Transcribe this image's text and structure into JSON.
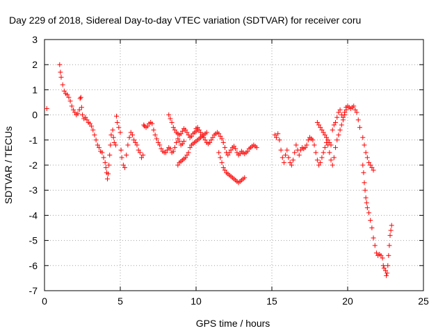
{
  "chart_data": {
    "type": "scatter",
    "title": "Day 229 of 2018, Sidereal Day-to-day VTEC variation (SDTVAR) for receiver coru",
    "xlabel": "GPS time / hours",
    "ylabel": "SDTVAR / TECUs",
    "xlim": [
      0,
      25
    ],
    "ylim": [
      -7,
      3
    ],
    "xticks": [
      0,
      5,
      10,
      15,
      20,
      25
    ],
    "yticks": [
      -7,
      -6,
      -5,
      -4,
      -3,
      -2,
      -1,
      0,
      1,
      2,
      3
    ],
    "grid": true,
    "marker": "+",
    "series": [
      {
        "name": "SDTVAR",
        "color": "#ff0000",
        "points": [
          [
            0.15,
            0.25
          ],
          [
            1.0,
            2.0
          ],
          [
            1.05,
            1.7
          ],
          [
            1.1,
            1.5
          ],
          [
            1.2,
            1.2
          ],
          [
            1.3,
            0.95
          ],
          [
            1.4,
            0.85
          ],
          [
            1.5,
            0.8
          ],
          [
            1.6,
            0.7
          ],
          [
            1.7,
            0.55
          ],
          [
            1.8,
            0.35
          ],
          [
            1.9,
            0.2
          ],
          [
            2.0,
            0.1
          ],
          [
            2.1,
            0.0
          ],
          [
            2.2,
            0.05
          ],
          [
            2.3,
            0.2
          ],
          [
            2.35,
            0.65
          ],
          [
            2.4,
            0.7
          ],
          [
            2.45,
            0.3
          ],
          [
            2.5,
            0.0
          ],
          [
            2.6,
            -0.15
          ],
          [
            2.7,
            -0.1
          ],
          [
            2.8,
            -0.2
          ],
          [
            2.9,
            -0.3
          ],
          [
            3.0,
            -0.35
          ],
          [
            3.1,
            -0.45
          ],
          [
            3.2,
            -0.6
          ],
          [
            3.3,
            -0.8
          ],
          [
            3.4,
            -1.0
          ],
          [
            3.5,
            -1.2
          ],
          [
            3.6,
            -1.3
          ],
          [
            3.7,
            -1.45
          ],
          [
            3.8,
            -1.5
          ],
          [
            3.9,
            -1.7
          ],
          [
            4.0,
            -1.9
          ],
          [
            4.05,
            -2.1
          ],
          [
            4.1,
            -2.3
          ],
          [
            4.15,
            -2.55
          ],
          [
            4.2,
            -2.35
          ],
          [
            4.25,
            -2.0
          ],
          [
            4.3,
            -1.6
          ],
          [
            4.35,
            -1.2
          ],
          [
            4.4,
            -0.8
          ],
          [
            4.5,
            -0.6
          ],
          [
            4.55,
            -0.9
          ],
          [
            4.6,
            -1.1
          ],
          [
            4.7,
            -1.2
          ],
          [
            4.75,
            -0.05
          ],
          [
            4.8,
            -0.3
          ],
          [
            4.9,
            -0.5
          ],
          [
            5.0,
            -0.7
          ],
          [
            5.05,
            -1.4
          ],
          [
            5.1,
            -1.7
          ],
          [
            5.2,
            -2.0
          ],
          [
            5.3,
            -2.1
          ],
          [
            5.4,
            -1.6
          ],
          [
            5.5,
            -1.2
          ],
          [
            5.6,
            -0.9
          ],
          [
            5.7,
            -0.7
          ],
          [
            5.8,
            -0.8
          ],
          [
            5.9,
            -1.0
          ],
          [
            6.0,
            -1.1
          ],
          [
            6.1,
            -1.2
          ],
          [
            6.2,
            -1.4
          ],
          [
            6.3,
            -1.5
          ],
          [
            6.4,
            -1.7
          ],
          [
            6.5,
            -1.6
          ],
          [
            6.55,
            -0.4
          ],
          [
            6.6,
            -0.45
          ],
          [
            6.7,
            -0.5
          ],
          [
            6.8,
            -0.45
          ],
          [
            6.9,
            -0.35
          ],
          [
            7.0,
            -0.3
          ],
          [
            7.1,
            -0.35
          ],
          [
            7.2,
            -0.6
          ],
          [
            7.3,
            -0.8
          ],
          [
            7.4,
            -0.95
          ],
          [
            7.5,
            -1.1
          ],
          [
            7.6,
            -1.2
          ],
          [
            7.7,
            -1.35
          ],
          [
            7.8,
            -1.45
          ],
          [
            7.9,
            -1.5
          ],
          [
            8.0,
            -1.5
          ],
          [
            8.1,
            -1.4
          ],
          [
            8.2,
            -1.3
          ],
          [
            8.3,
            -1.35
          ],
          [
            8.4,
            -1.5
          ],
          [
            8.5,
            -1.45
          ],
          [
            8.6,
            -1.3
          ],
          [
            8.7,
            -1.1
          ],
          [
            8.8,
            -0.95
          ],
          [
            8.9,
            -1.05
          ],
          [
            9.0,
            -1.2
          ],
          [
            9.1,
            -1.15
          ],
          [
            9.2,
            -1.05
          ],
          [
            8.2,
            0.0
          ],
          [
            8.3,
            -0.15
          ],
          [
            8.4,
            -0.3
          ],
          [
            8.5,
            -0.5
          ],
          [
            8.6,
            -0.6
          ],
          [
            8.7,
            -0.7
          ],
          [
            8.8,
            -0.75
          ],
          [
            8.9,
            -0.8
          ],
          [
            9.0,
            -0.75
          ],
          [
            9.1,
            -0.65
          ],
          [
            9.2,
            -0.55
          ],
          [
            9.3,
            -0.6
          ],
          [
            9.4,
            -0.7
          ],
          [
            9.5,
            -0.8
          ],
          [
            9.6,
            -0.9
          ],
          [
            9.7,
            -0.85
          ],
          [
            9.8,
            -0.75
          ],
          [
            9.9,
            -0.7
          ],
          [
            10.0,
            -0.65
          ],
          [
            10.1,
            -0.6
          ],
          [
            8.8,
            -2.0
          ],
          [
            8.9,
            -1.9
          ],
          [
            9.0,
            -1.85
          ],
          [
            9.1,
            -1.8
          ],
          [
            9.2,
            -1.75
          ],
          [
            9.3,
            -1.7
          ],
          [
            9.4,
            -1.6
          ],
          [
            9.5,
            -1.5
          ],
          [
            9.6,
            -1.3
          ],
          [
            9.7,
            -1.2
          ],
          [
            9.8,
            -1.15
          ],
          [
            9.9,
            -1.1
          ],
          [
            10.0,
            -1.05
          ],
          [
            10.1,
            -1.0
          ],
          [
            10.2,
            -0.95
          ],
          [
            10.3,
            -0.9
          ],
          [
            10.4,
            -0.85
          ],
          [
            10.5,
            -0.8
          ],
          [
            10.6,
            -0.75
          ],
          [
            10.7,
            -0.7
          ],
          [
            10.0,
            -0.55
          ],
          [
            10.1,
            -0.5
          ],
          [
            10.2,
            -0.6
          ],
          [
            10.3,
            -0.7
          ],
          [
            10.4,
            -0.8
          ],
          [
            10.5,
            -0.9
          ],
          [
            10.6,
            -1.0
          ],
          [
            10.7,
            -1.1
          ],
          [
            10.8,
            -1.15
          ],
          [
            10.9,
            -1.1
          ],
          [
            11.0,
            -1.0
          ],
          [
            11.1,
            -0.9
          ],
          [
            11.2,
            -0.8
          ],
          [
            11.3,
            -0.75
          ],
          [
            11.4,
            -0.7
          ],
          [
            11.5,
            -0.75
          ],
          [
            11.6,
            -0.85
          ],
          [
            11.7,
            -0.95
          ],
          [
            11.8,
            -1.1
          ],
          [
            11.9,
            -1.3
          ],
          [
            12.0,
            -1.5
          ],
          [
            12.1,
            -1.6
          ],
          [
            12.2,
            -1.5
          ],
          [
            12.3,
            -1.4
          ],
          [
            12.4,
            -1.3
          ],
          [
            12.5,
            -1.25
          ],
          [
            12.6,
            -1.35
          ],
          [
            12.7,
            -1.5
          ],
          [
            12.8,
            -1.6
          ],
          [
            12.9,
            -1.55
          ],
          [
            13.0,
            -1.45
          ],
          [
            13.1,
            -1.5
          ],
          [
            13.2,
            -1.55
          ],
          [
            13.3,
            -1.5
          ],
          [
            13.4,
            -1.45
          ],
          [
            13.5,
            -1.35
          ],
          [
            13.6,
            -1.3
          ],
          [
            13.7,
            -1.25
          ],
          [
            13.8,
            -1.2
          ],
          [
            13.9,
            -1.25
          ],
          [
            14.0,
            -1.3
          ],
          [
            11.5,
            -1.5
          ],
          [
            11.6,
            -1.7
          ],
          [
            11.7,
            -1.9
          ],
          [
            11.8,
            -2.1
          ],
          [
            11.9,
            -2.2
          ],
          [
            12.0,
            -2.3
          ],
          [
            12.1,
            -2.35
          ],
          [
            12.2,
            -2.4
          ],
          [
            12.3,
            -2.45
          ],
          [
            12.4,
            -2.5
          ],
          [
            12.5,
            -2.55
          ],
          [
            12.6,
            -2.6
          ],
          [
            12.7,
            -2.65
          ],
          [
            12.8,
            -2.7
          ],
          [
            12.9,
            -2.65
          ],
          [
            13.0,
            -2.6
          ],
          [
            13.1,
            -2.55
          ],
          [
            13.2,
            -2.5
          ],
          [
            15.2,
            -0.8
          ],
          [
            15.3,
            -0.9
          ],
          [
            15.4,
            -0.75
          ],
          [
            15.5,
            -1.0
          ],
          [
            15.6,
            -1.4
          ],
          [
            15.7,
            -1.7
          ],
          [
            15.8,
            -1.9
          ],
          [
            15.9,
            -1.6
          ],
          [
            16.0,
            -1.4
          ],
          [
            16.1,
            -1.7
          ],
          [
            16.2,
            -1.9
          ],
          [
            16.3,
            -2.0
          ],
          [
            16.4,
            -1.8
          ],
          [
            16.5,
            -1.5
          ],
          [
            16.6,
            -1.2
          ],
          [
            16.7,
            -1.4
          ],
          [
            16.8,
            -1.6
          ],
          [
            16.9,
            -1.4
          ],
          [
            17.0,
            -1.3
          ],
          [
            17.1,
            -1.35
          ],
          [
            17.2,
            -1.3
          ],
          [
            17.3,
            -1.2
          ],
          [
            17.4,
            -1.0
          ],
          [
            17.5,
            -0.9
          ],
          [
            17.6,
            -0.95
          ],
          [
            17.7,
            -1.0
          ],
          [
            17.8,
            -1.2
          ],
          [
            17.9,
            -1.5
          ],
          [
            18.0,
            -1.8
          ],
          [
            18.1,
            -2.0
          ],
          [
            18.2,
            -1.9
          ],
          [
            18.3,
            -1.7
          ],
          [
            18.4,
            -1.5
          ],
          [
            18.5,
            -1.3
          ],
          [
            18.6,
            -1.1
          ],
          [
            18.7,
            -1.2
          ],
          [
            18.8,
            -1.5
          ],
          [
            18.9,
            -1.8
          ],
          [
            19.0,
            -2.0
          ],
          [
            19.1,
            -1.7
          ],
          [
            19.2,
            -1.3
          ],
          [
            19.3,
            -1.0
          ],
          [
            19.4,
            -0.8
          ],
          [
            19.5,
            -0.6
          ],
          [
            19.6,
            -0.4
          ],
          [
            19.7,
            -0.2
          ],
          [
            19.8,
            0.0
          ],
          [
            19.9,
            0.2
          ],
          [
            18.0,
            -0.3
          ],
          [
            18.1,
            -0.4
          ],
          [
            18.2,
            -0.5
          ],
          [
            18.3,
            -0.6
          ],
          [
            18.4,
            -0.7
          ],
          [
            18.5,
            -0.8
          ],
          [
            18.6,
            -0.9
          ],
          [
            18.7,
            -1.0
          ],
          [
            18.8,
            -1.1
          ],
          [
            18.9,
            -1.2
          ],
          [
            19.0,
            -0.6
          ],
          [
            19.1,
            -0.4
          ],
          [
            19.2,
            -0.3
          ],
          [
            19.3,
            -0.1
          ],
          [
            19.4,
            0.1
          ],
          [
            19.5,
            0.2
          ],
          [
            19.6,
            0.0
          ],
          [
            19.7,
            -0.1
          ],
          [
            19.8,
            0.1
          ],
          [
            19.9,
            0.3
          ],
          [
            20.0,
            0.35
          ],
          [
            20.1,
            0.3
          ],
          [
            20.2,
            0.25
          ],
          [
            20.3,
            0.3
          ],
          [
            20.4,
            0.35
          ],
          [
            20.5,
            0.2
          ],
          [
            20.6,
            0.1
          ],
          [
            20.7,
            -0.2
          ],
          [
            20.8,
            -0.5
          ],
          [
            21.0,
            -0.9
          ],
          [
            21.1,
            -1.2
          ],
          [
            21.2,
            -1.5
          ],
          [
            21.3,
            -1.7
          ],
          [
            21.4,
            -1.9
          ],
          [
            21.5,
            -2.0
          ],
          [
            21.6,
            -2.1
          ],
          [
            21.7,
            -2.2
          ],
          [
            21.0,
            -2.0
          ],
          [
            21.05,
            -2.3
          ],
          [
            21.1,
            -2.7
          ],
          [
            21.15,
            -3.0
          ],
          [
            21.2,
            -3.3
          ],
          [
            21.25,
            -3.5
          ],
          [
            21.3,
            -3.7
          ],
          [
            21.4,
            -3.9
          ],
          [
            21.5,
            -4.2
          ],
          [
            21.6,
            -4.5
          ],
          [
            21.7,
            -4.9
          ],
          [
            21.8,
            -5.2
          ],
          [
            21.9,
            -5.5
          ],
          [
            22.0,
            -5.6
          ],
          [
            22.1,
            -5.55
          ],
          [
            22.2,
            -5.6
          ],
          [
            22.3,
            -5.7
          ],
          [
            22.35,
            -6.0
          ],
          [
            22.4,
            -6.1
          ],
          [
            22.5,
            -6.2
          ],
          [
            22.55,
            -6.4
          ],
          [
            22.6,
            -6.3
          ],
          [
            22.65,
            -6.0
          ],
          [
            22.7,
            -5.6
          ],
          [
            22.75,
            -5.2
          ],
          [
            22.8,
            -4.8
          ],
          [
            22.85,
            -4.6
          ],
          [
            22.9,
            -4.4
          ]
        ]
      }
    ]
  }
}
